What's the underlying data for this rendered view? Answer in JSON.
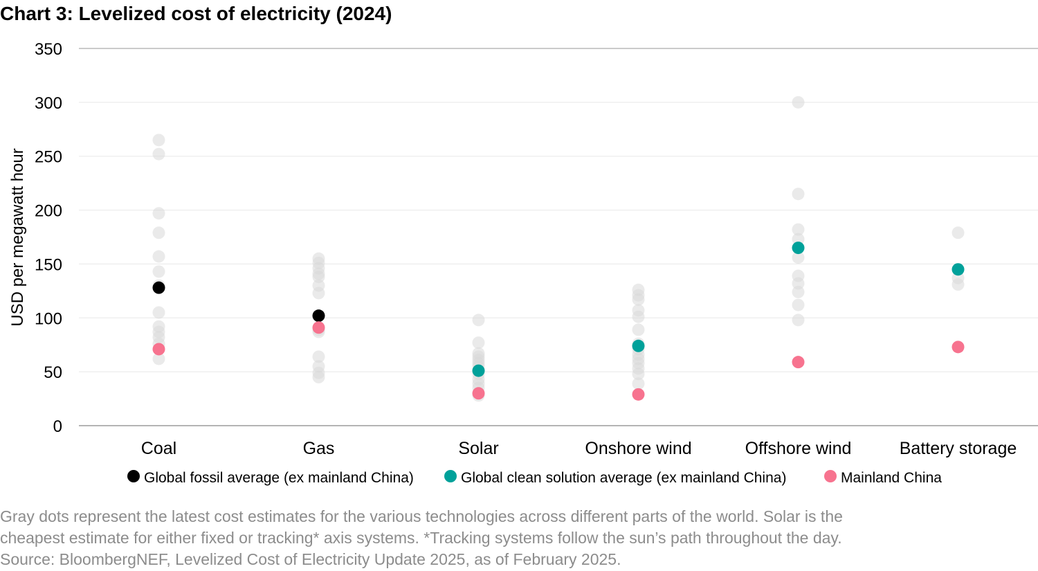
{
  "title": "Chart 3: Levelized cost of electricity (2024)",
  "footnotes": [
    "Gray dots represent the latest cost estimates for the various technologies across different parts of the world. Solar is the",
    "cheapest estimate for either fixed or tracking* axis systems. *Tracking systems follow the sun’s path throughout the day.",
    "Source: BloombergNEF, Levelized Cost of Electricity Update 2025, as of February 2025."
  ],
  "chart_data": {
    "type": "scatter",
    "title": "Chart 3: Levelized cost of electricity (2024)",
    "ylabel": "USD per megawatt hour",
    "ylim": [
      0,
      350
    ],
    "yticks": [
      0,
      50,
      100,
      150,
      200,
      250,
      300,
      350
    ],
    "grid": true,
    "legend_position": "bottom",
    "categories": [
      "Coal",
      "Gas",
      "Solar",
      "Onshore wind",
      "Offshore wind",
      "Battery storage"
    ],
    "gray_estimates": [
      [
        265,
        252,
        197,
        179,
        157,
        143,
        130,
        105,
        92,
        87,
        82,
        76,
        62
      ],
      [
        155,
        151,
        146,
        141,
        138,
        130,
        123,
        89,
        87,
        64,
        55,
        49,
        45
      ],
      [
        98,
        77,
        67,
        64,
        61,
        58,
        55,
        48,
        43,
        39,
        35,
        28
      ],
      [
        126,
        121,
        117,
        107,
        101,
        89,
        76,
        71,
        66,
        62,
        58,
        53,
        48,
        39
      ],
      [
        300,
        215,
        182,
        173,
        156,
        139,
        132,
        124,
        112,
        98
      ],
      [
        179,
        137,
        131
      ]
    ],
    "series": [
      {
        "name": "Global fossil average (ex mainland China)",
        "color": "#000000",
        "values": [
          128,
          102,
          null,
          null,
          null,
          null
        ]
      },
      {
        "name": "Global clean solution average (ex mainland China)",
        "color": "#00a19a",
        "values": [
          null,
          null,
          51,
          74,
          165,
          145
        ]
      },
      {
        "name": "Mainland China",
        "color": "#f7738f",
        "values": [
          71,
          91,
          30,
          29,
          59,
          73
        ]
      }
    ],
    "gray_color": "#e6e6e6"
  }
}
